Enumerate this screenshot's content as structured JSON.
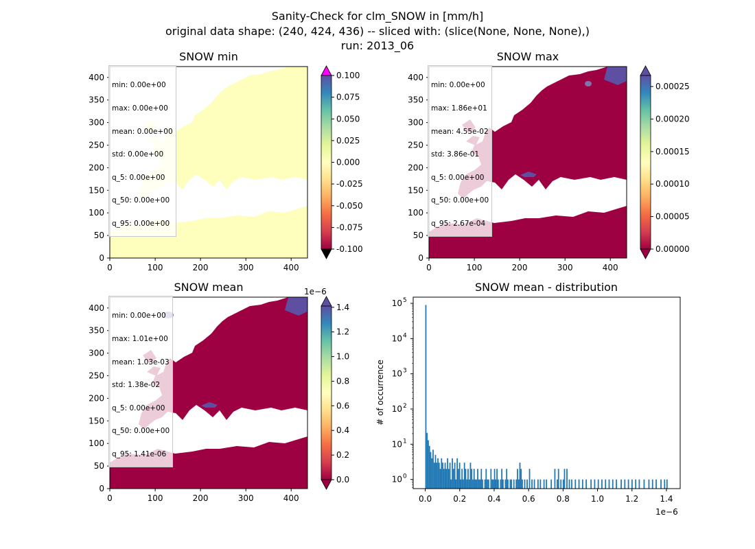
{
  "suptitle": [
    "Sanity-Check for clm_SNOW in [mm/h]",
    "original data shape: (240, 424, 436) -- sliced with: (slice(None, None, None),)",
    "run: 2013_06"
  ],
  "colors": {
    "land_zero": "#9e0142",
    "land_min": "#fefebd",
    "snow": "#5e4fa2",
    "hist_bar": "#1f77b4",
    "over": "#ff00ff",
    "under": "#000000"
  },
  "chart_data": [
    {
      "type": "heatmap",
      "title": "SNOW min",
      "xlim": [
        0,
        436
      ],
      "ylim": [
        0,
        424
      ],
      "xticks": [
        "0",
        "100",
        "200",
        "300",
        "400"
      ],
      "yticks": [
        "0",
        "50",
        "100",
        "150",
        "200",
        "250",
        "300",
        "350",
        "400"
      ],
      "colorbar": {
        "cmap": "Spectral_r",
        "range": [
          -0.1,
          0.1
        ],
        "ticks": [
          "-0.100",
          "-0.075",
          "-0.050",
          "-0.025",
          "0.000",
          "0.025",
          "0.050",
          "0.075",
          "0.100"
        ],
        "extend": "both",
        "offset": ""
      },
      "stats": [
        "min: 0.00e+00",
        "max: 0.00e+00",
        "mean: 0.00e+00",
        "std: 0.00e+00",
        "q_5: 0.00e+00",
        "q_50: 0.00e+00",
        "q_95: 0.00e+00"
      ]
    },
    {
      "type": "heatmap",
      "title": "SNOW max",
      "xlim": [
        0,
        436
      ],
      "ylim": [
        0,
        424
      ],
      "xticks": [
        "0",
        "100",
        "200",
        "300",
        "400"
      ],
      "yticks": [
        "0",
        "50",
        "100",
        "150",
        "200",
        "250",
        "300",
        "350",
        "400"
      ],
      "colorbar": {
        "cmap": "Spectral_r",
        "range": [
          0,
          0.000267
        ],
        "ticks": [
          "0.00000",
          "0.00005",
          "0.00010",
          "0.00015",
          "0.00020",
          "0.00025"
        ],
        "extend": "both",
        "offset": ""
      },
      "stats": [
        "min: 0.00e+00",
        "max: 1.86e+01",
        "mean: 4.55e-02",
        "std: 3.86e-01",
        "q_5: 0.00e+00",
        "q_50: 0.00e+00",
        "q_95: 2.67e-04"
      ]
    },
    {
      "type": "heatmap",
      "title": "SNOW mean",
      "xlim": [
        0,
        436
      ],
      "ylim": [
        0,
        424
      ],
      "xticks": [
        "0",
        "100",
        "200",
        "300",
        "400"
      ],
      "yticks": [
        "0",
        "50",
        "100",
        "150",
        "200",
        "250",
        "300",
        "350",
        "400"
      ],
      "colorbar": {
        "cmap": "Spectral_r",
        "range": [
          0,
          1.41
        ],
        "ticks": [
          "0.0",
          "0.2",
          "0.4",
          "0.6",
          "0.8",
          "1.0",
          "1.2",
          "1.4"
        ],
        "extend": "both",
        "offset": "1e−6"
      },
      "stats": [
        "min: 0.00e+00",
        "max: 1.01e+00",
        "mean: 1.03e-03",
        "std: 1.38e-02",
        "q_5: 0.00e+00",
        "q_50: 0.00e+00",
        "q_95: 1.41e-06"
      ]
    },
    {
      "type": "bar",
      "title": "SNOW mean - distribution",
      "xlabel": "",
      "ylabel": "# of occurrence",
      "xlim": [
        -0.07,
        1.48
      ],
      "yscale": "log",
      "ylim": [
        0.55,
        150000
      ],
      "xticks": [
        0.0,
        0.2,
        0.4,
        0.6,
        0.8,
        1.0,
        1.2,
        1.4
      ],
      "xtick_labels": [
        "0.0",
        "0.2",
        "0.4",
        "0.6",
        "0.8",
        "1.0",
        "1.2",
        "1.4"
      ],
      "yticks": [
        1,
        10,
        100,
        1000,
        10000,
        100000
      ],
      "ytick_base": "10",
      "ytick_exps": [
        "0",
        "1",
        "2",
        "3",
        "4",
        "5"
      ],
      "x_offset": "1e−6",
      "bin_width": 0.0071,
      "bars": [
        [
          0.0,
          90000
        ],
        [
          0.007,
          21
        ],
        [
          0.014,
          13
        ],
        [
          0.021,
          9
        ],
        [
          0.028,
          6
        ],
        [
          0.035,
          4
        ],
        [
          0.042,
          7
        ],
        [
          0.049,
          3
        ],
        [
          0.056,
          5
        ],
        [
          0.063,
          3
        ],
        [
          0.07,
          4
        ],
        [
          0.077,
          3
        ],
        [
          0.084,
          2
        ],
        [
          0.091,
          4
        ],
        [
          0.098,
          3
        ],
        [
          0.105,
          2
        ],
        [
          0.112,
          3
        ],
        [
          0.119,
          2
        ],
        [
          0.126,
          4
        ],
        [
          0.133,
          2
        ],
        [
          0.14,
          3
        ],
        [
          0.147,
          1
        ],
        [
          0.154,
          4
        ],
        [
          0.161,
          2
        ],
        [
          0.168,
          3
        ],
        [
          0.175,
          1
        ],
        [
          0.182,
          4
        ],
        [
          0.189,
          2
        ],
        [
          0.196,
          3
        ],
        [
          0.203,
          1
        ],
        [
          0.21,
          2
        ],
        [
          0.217,
          1
        ],
        [
          0.224,
          3
        ],
        [
          0.231,
          2
        ],
        [
          0.238,
          1
        ],
        [
          0.245,
          2
        ],
        [
          0.252,
          1
        ],
        [
          0.259,
          3
        ],
        [
          0.266,
          2
        ],
        [
          0.273,
          1
        ],
        [
          0.28,
          2
        ],
        [
          0.287,
          1
        ],
        [
          0.294,
          1
        ],
        [
          0.301,
          2
        ],
        [
          0.308,
          1
        ],
        [
          0.315,
          1
        ],
        [
          0.322,
          2
        ],
        [
          0.329,
          1
        ],
        [
          0.343,
          1
        ],
        [
          0.35,
          2
        ],
        [
          0.357,
          1
        ],
        [
          0.364,
          1
        ],
        [
          0.378,
          2
        ],
        [
          0.385,
          1
        ],
        [
          0.392,
          1
        ],
        [
          0.399,
          2
        ],
        [
          0.406,
          1
        ],
        [
          0.413,
          2
        ],
        [
          0.42,
          1
        ],
        [
          0.434,
          1
        ],
        [
          0.441,
          2
        ],
        [
          0.448,
          1
        ],
        [
          0.462,
          1
        ],
        [
          0.469,
          2
        ],
        [
          0.476,
          1
        ],
        [
          0.49,
          1
        ],
        [
          0.497,
          1
        ],
        [
          0.511,
          1
        ],
        [
          0.525,
          1
        ],
        [
          0.532,
          2
        ],
        [
          0.539,
          1
        ],
        [
          0.546,
          3
        ],
        [
          0.553,
          2
        ],
        [
          0.56,
          1
        ],
        [
          0.574,
          1
        ],
        [
          0.588,
          1
        ],
        [
          0.602,
          2
        ],
        [
          0.616,
          1
        ],
        [
          0.63,
          1
        ],
        [
          0.651,
          1
        ],
        [
          0.665,
          1
        ],
        [
          0.686,
          1
        ],
        [
          0.7,
          1
        ],
        [
          0.728,
          1
        ],
        [
          0.749,
          2
        ],
        [
          0.763,
          1
        ],
        [
          0.77,
          2
        ],
        [
          0.784,
          1
        ],
        [
          0.798,
          1
        ],
        [
          0.805,
          2
        ],
        [
          0.819,
          2
        ],
        [
          0.833,
          1
        ],
        [
          0.847,
          1
        ],
        [
          0.868,
          1
        ],
        [
          0.889,
          1
        ],
        [
          0.91,
          1
        ],
        [
          0.931,
          1
        ],
        [
          0.959,
          1
        ],
        [
          0.98,
          1
        ],
        [
          1.001,
          1
        ],
        [
          1.022,
          1
        ],
        [
          1.043,
          1
        ],
        [
          1.064,
          1
        ],
        [
          1.085,
          1
        ],
        [
          1.106,
          1
        ],
        [
          1.134,
          1
        ],
        [
          1.155,
          1
        ],
        [
          1.176,
          1
        ],
        [
          1.197,
          1
        ],
        [
          1.218,
          1
        ],
        [
          1.239,
          1
        ],
        [
          1.267,
          1
        ],
        [
          1.295,
          1
        ],
        [
          1.316,
          1
        ],
        [
          1.337,
          1
        ],
        [
          1.365,
          1
        ],
        [
          1.386,
          1
        ],
        [
          1.4,
          1
        ]
      ]
    }
  ]
}
